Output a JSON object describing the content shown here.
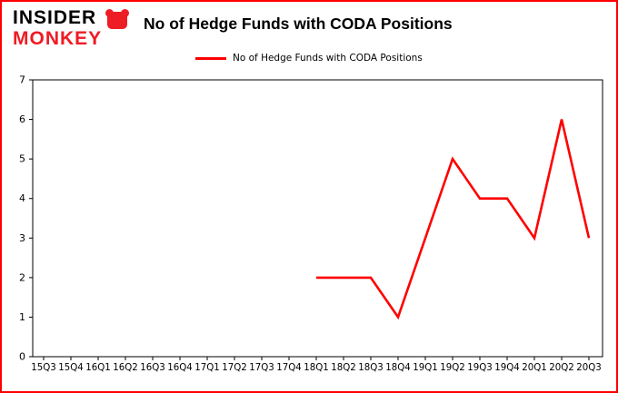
{
  "brand": {
    "line1": "INSIDER",
    "line2": "MONKEY"
  },
  "header": {
    "title": "No of Hedge Funds with CODA Positions"
  },
  "legend": {
    "label": "No of Hedge Funds with CODA Positions"
  },
  "colors": {
    "border": "#ff0000",
    "line": "#ff0000",
    "brand_red": "#ee1c24",
    "axis": "#000000"
  },
  "chart_data": {
    "type": "line",
    "title": "No of Hedge Funds with CODA Positions",
    "categories": [
      "15Q3",
      "15Q4",
      "16Q1",
      "16Q2",
      "16Q3",
      "16Q4",
      "17Q1",
      "17Q2",
      "17Q3",
      "17Q4",
      "18Q1",
      "18Q2",
      "18Q3",
      "18Q4",
      "19Q1",
      "19Q2",
      "19Q3",
      "19Q4",
      "20Q1",
      "20Q2",
      "20Q3"
    ],
    "series": [
      {
        "name": "No of Hedge Funds with CODA Positions",
        "color": "#ff0000",
        "values": [
          null,
          null,
          null,
          null,
          null,
          null,
          null,
          null,
          null,
          null,
          2,
          2,
          2,
          1,
          3,
          5,
          4,
          4,
          3,
          6,
          3
        ]
      }
    ],
    "xlabel": "",
    "ylabel": "",
    "ylim": [
      0,
      7
    ],
    "yticks": [
      0,
      1,
      2,
      3,
      4,
      5,
      6,
      7
    ],
    "grid": false,
    "legend_position": "top"
  }
}
